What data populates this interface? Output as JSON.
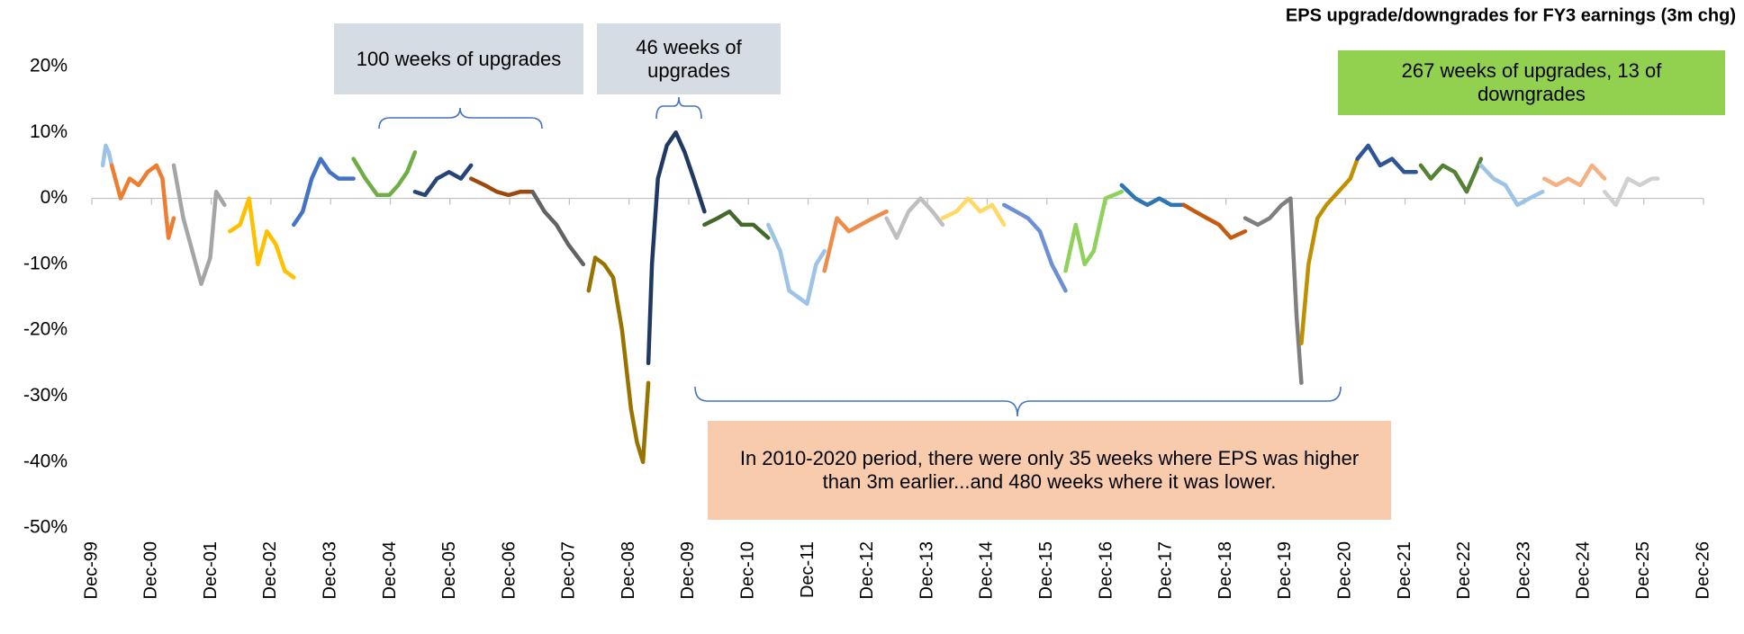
{
  "chart_data": {
    "type": "line",
    "title": "EPS upgrade/downgrades for FY3 earnings (3m chg)",
    "annotations": [
      "100 weeks of upgrades",
      "46 weeks of upgrades",
      "267 weeks of upgrades, 13 of downgrades",
      "In 2010-2020 period, there were only 35 weeks where EPS was higher than 3m earlier...and 480 weeks where it was lower."
    ],
    "xlim": [
      1999.917,
      2026.917
    ],
    "xticks": [
      {
        "value": 1999.917,
        "label": "Dec-99"
      },
      {
        "value": 2000.917,
        "label": "Dec-00"
      },
      {
        "value": 2001.917,
        "label": "Dec-01"
      },
      {
        "value": 2002.917,
        "label": "Dec-02"
      },
      {
        "value": 2003.917,
        "label": "Dec-03"
      },
      {
        "value": 2004.917,
        "label": "Dec-04"
      },
      {
        "value": 2005.917,
        "label": "Dec-05"
      },
      {
        "value": 2006.917,
        "label": "Dec-06"
      },
      {
        "value": 2007.917,
        "label": "Dec-07"
      },
      {
        "value": 2008.917,
        "label": "Dec-08"
      },
      {
        "value": 2009.917,
        "label": "Dec-09"
      },
      {
        "value": 2010.917,
        "label": "Dec-10"
      },
      {
        "value": 2011.917,
        "label": "Dec-11"
      },
      {
        "value": 2012.917,
        "label": "Dec-12"
      },
      {
        "value": 2013.917,
        "label": "Dec-13"
      },
      {
        "value": 2014.917,
        "label": "Dec-14"
      },
      {
        "value": 2015.917,
        "label": "Dec-15"
      },
      {
        "value": 2016.917,
        "label": "Dec-16"
      },
      {
        "value": 2017.917,
        "label": "Dec-17"
      },
      {
        "value": 2018.917,
        "label": "Dec-18"
      },
      {
        "value": 2019.917,
        "label": "Dec-19"
      },
      {
        "value": 2020.917,
        "label": "Dec-20"
      },
      {
        "value": 2021.917,
        "label": "Dec-21"
      },
      {
        "value": 2022.917,
        "label": "Dec-22"
      },
      {
        "value": 2023.917,
        "label": "Dec-23"
      },
      {
        "value": 2024.917,
        "label": "Dec-24"
      },
      {
        "value": 2025.917,
        "label": "Dec-25"
      },
      {
        "value": 2026.917,
        "label": "Dec-26"
      }
    ],
    "ylim": [
      -50,
      20
    ],
    "yticks": [
      {
        "value": 20,
        "label": "20%"
      },
      {
        "value": 10,
        "label": "10%"
      },
      {
        "value": 0,
        "label": "0%"
      },
      {
        "value": -10,
        "label": "-10%"
      },
      {
        "value": -20,
        "label": "-20%"
      },
      {
        "value": -30,
        "label": "-30%"
      },
      {
        "value": -40,
        "label": "-40%"
      },
      {
        "value": -50,
        "label": "-50%"
      }
    ],
    "grid": false,
    "series": [
      {
        "color": "#9dc3e6",
        "x": [
          2000.1,
          2000.15,
          2000.2,
          2000.25
        ],
        "values": [
          5,
          8,
          7,
          5
        ]
      },
      {
        "color": "#ed7d31",
        "x": [
          2000.25,
          2000.4,
          2000.55,
          2000.7,
          2000.85,
          2001.0,
          2001.1,
          2001.2,
          2001.29
        ],
        "values": [
          5,
          0,
          3,
          2,
          4,
          5,
          3,
          -6,
          -3
        ]
      },
      {
        "color": "#a5a5a5",
        "x": [
          2001.29,
          2001.45,
          2001.6,
          2001.75,
          2001.9,
          2002.0,
          2002.14
        ],
        "values": [
          5,
          -3,
          -8,
          -13,
          -9,
          1,
          -1
        ]
      },
      {
        "color": "#ffc000",
        "x": [
          2002.23,
          2002.4,
          2002.55,
          2002.7,
          2002.85,
          2003.0,
          2003.15,
          2003.3
        ],
        "values": [
          -5,
          -4,
          0,
          -10,
          -5,
          -7,
          -11,
          -12
        ]
      },
      {
        "color": "#4472c4",
        "x": [
          2003.3,
          2003.45,
          2003.6,
          2003.75,
          2003.9,
          2004.05,
          2004.3
        ],
        "values": [
          -4,
          -2,
          3,
          6,
          4,
          3,
          3
        ]
      },
      {
        "color": "#70ad47",
        "x": [
          2004.3,
          2004.5,
          2004.7,
          2004.9,
          2005.05,
          2005.2,
          2005.33
        ],
        "values": [
          6,
          3,
          0.5,
          0.5,
          2,
          4,
          7
        ]
      },
      {
        "color": "#264478",
        "x": [
          2005.33,
          2005.5,
          2005.7,
          2005.9,
          2006.1,
          2006.27
        ],
        "values": [
          1,
          0.5,
          3,
          4,
          3,
          5
        ]
      },
      {
        "color": "#9e480e",
        "x": [
          2006.27,
          2006.5,
          2006.7,
          2006.9,
          2007.1,
          2007.3
        ],
        "values": [
          3,
          2,
          1,
          0.5,
          1,
          1
        ]
      },
      {
        "color": "#636363",
        "x": [
          2007.3,
          2007.5,
          2007.7,
          2007.9,
          2008.15
        ],
        "values": [
          1,
          -2,
          -4,
          -7,
          -10
        ]
      },
      {
        "color": "#997300",
        "x": [
          2008.24,
          2008.35,
          2008.5,
          2008.65,
          2008.8,
          2008.95,
          2009.05,
          2009.15,
          2009.24
        ],
        "values": [
          -14,
          -9,
          -10,
          -12,
          -20,
          -32,
          -37,
          -40,
          -28
        ]
      },
      {
        "color": "#203864",
        "x": [
          2009.24,
          2009.3,
          2009.4,
          2009.55,
          2009.7,
          2009.85,
          2010.0,
          2010.18
        ],
        "values": [
          -25,
          -10,
          3,
          8,
          10,
          7,
          3,
          -2
        ]
      },
      {
        "color": "#43682b",
        "x": [
          2010.18,
          2010.4,
          2010.6,
          2010.8,
          2011.0,
          2011.25
        ],
        "values": [
          -4,
          -3,
          -2,
          -4,
          -4,
          -6
        ]
      },
      {
        "color": "#9dc3e6",
        "x": [
          2011.25,
          2011.45,
          2011.6,
          2011.75,
          2011.9,
          2012.05,
          2012.19
        ],
        "values": [
          -4,
          -8,
          -14,
          -15,
          -16,
          -10,
          -8
        ]
      },
      {
        "color": "#f08c4a",
        "x": [
          2012.19,
          2012.4,
          2012.6,
          2012.8,
          2013.0,
          2013.23
        ],
        "values": [
          -11,
          -3,
          -5,
          -4,
          -3,
          -2
        ]
      },
      {
        "color": "#bfbfbf",
        "x": [
          2013.23,
          2013.4,
          2013.6,
          2013.8,
          2014.0,
          2014.17
        ],
        "values": [
          -3,
          -6,
          -2,
          0,
          -2,
          -4
        ]
      },
      {
        "color": "#ffd966",
        "x": [
          2014.17,
          2014.4,
          2014.6,
          2014.8,
          2015.0,
          2015.2
        ],
        "values": [
          -3,
          -2,
          0,
          -2,
          -1,
          -4
        ]
      },
      {
        "color": "#6f8fd4",
        "x": [
          2015.2,
          2015.4,
          2015.6,
          2015.8,
          2016.0,
          2016.23
        ],
        "values": [
          -1,
          -2,
          -3,
          -5,
          -10,
          -14
        ]
      },
      {
        "color": "#8fd15b",
        "x": [
          2016.23,
          2016.4,
          2016.55,
          2016.7,
          2016.9,
          2017.17
        ],
        "values": [
          -11,
          -4,
          -10,
          -8,
          0,
          1
        ]
      },
      {
        "color": "#2e75b6",
        "x": [
          2017.17,
          2017.4,
          2017.6,
          2017.8,
          2018.0,
          2018.21
        ],
        "values": [
          2,
          0,
          -1,
          0,
          -1,
          -1
        ]
      },
      {
        "color": "#c55a11",
        "x": [
          2018.21,
          2018.4,
          2018.6,
          2018.8,
          2019.0,
          2019.24
        ],
        "values": [
          -1,
          -2,
          -3,
          -4,
          -6,
          -5
        ]
      },
      {
        "color": "#7f7f7f",
        "x": [
          2019.24,
          2019.45,
          2019.65,
          2019.85,
          2020.0,
          2020.1,
          2020.18
        ],
        "values": [
          -3,
          -4,
          -3,
          -1,
          0,
          -18,
          -28
        ]
      },
      {
        "color": "#bf9000",
        "x": [
          2020.18,
          2020.3,
          2020.45,
          2020.6,
          2020.8,
          2021.0,
          2021.12
        ],
        "values": [
          -22,
          -10,
          -3,
          -1,
          1,
          3,
          6
        ]
      },
      {
        "color": "#2f5597",
        "x": [
          2021.12,
          2021.3,
          2021.5,
          2021.7,
          2021.9,
          2022.1
        ],
        "values": [
          6,
          8,
          5,
          6,
          4,
          4
        ]
      },
      {
        "color": "#548235",
        "x": [
          2022.18,
          2022.35,
          2022.55,
          2022.75,
          2022.95,
          2023.19
        ],
        "values": [
          5,
          3,
          5,
          4,
          1,
          6
        ]
      },
      {
        "color": "#9dc3e6",
        "x": [
          2023.19,
          2023.4,
          2023.6,
          2023.8,
          2024.0,
          2024.22
        ],
        "values": [
          5,
          3,
          2,
          -1,
          0,
          1
        ]
      },
      {
        "color": "#f4b183",
        "x": [
          2024.25,
          2024.45,
          2024.65,
          2024.85,
          2025.05,
          2025.26
        ],
        "values": [
          3,
          2,
          3,
          2,
          5,
          3
        ]
      },
      {
        "color": "#d0d0d0",
        "x": [
          2025.26,
          2025.45,
          2025.65,
          2025.85,
          2026.05,
          2026.15
        ],
        "values": [
          1,
          -1,
          3,
          2,
          3,
          3
        ]
      }
    ]
  }
}
